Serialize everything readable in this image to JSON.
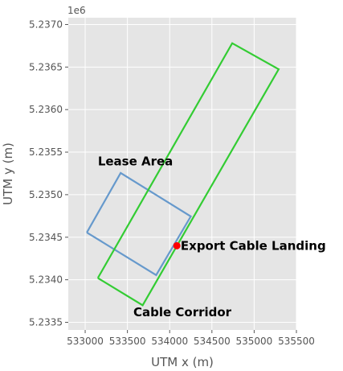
{
  "chart_data": {
    "type": "line",
    "title": "",
    "xlabel": "UTM x (m)",
    "ylabel": "UTM y (m)",
    "y_offset_label": "1e6",
    "xlim": [
      532800,
      535500
    ],
    "ylim": [
      5233410,
      5237080
    ],
    "grid": true,
    "background": "#e5e5e5",
    "x_ticks": [
      533000,
      533500,
      534000,
      534500,
      535000,
      535500
    ],
    "x_tick_labels": [
      "533000",
      "533500",
      "534000",
      "534500",
      "535000",
      "535500"
    ],
    "y_ticks": [
      5233500,
      5234000,
      5234500,
      5235000,
      5235500,
      5236000,
      5236500,
      5237000
    ],
    "y_tick_labels": [
      "5.2335",
      "5.2340",
      "5.2345",
      "5.2350",
      "5.2355",
      "5.2360",
      "5.2365",
      "5.2370"
    ],
    "series": [
      {
        "color": "#6699cc",
        "points": [
          [
            533020,
            5234555
          ],
          [
            533420,
            5235255
          ],
          [
            534250,
            5234745
          ],
          [
            533840,
            5234055
          ],
          [
            533020,
            5234555
          ]
        ]
      },
      {
        "color": "#33cc33",
        "points": [
          [
            533150,
            5234020
          ],
          [
            534740,
            5236780
          ],
          [
            535290,
            5236475
          ],
          [
            533680,
            5233700
          ],
          [
            533150,
            5234020
          ]
        ]
      }
    ],
    "markers": [
      {
        "x": 534085,
        "y": 5234400,
        "color": "#ff0000"
      }
    ],
    "annotations": [
      {
        "text": "Lease Area",
        "x": 533150,
        "y": 5235390
      },
      {
        "text": "Export Cable Landing",
        "x": 534130,
        "y": 5234400
      },
      {
        "text": "Cable Corridor",
        "x": 533570,
        "y": 5233620
      }
    ]
  }
}
